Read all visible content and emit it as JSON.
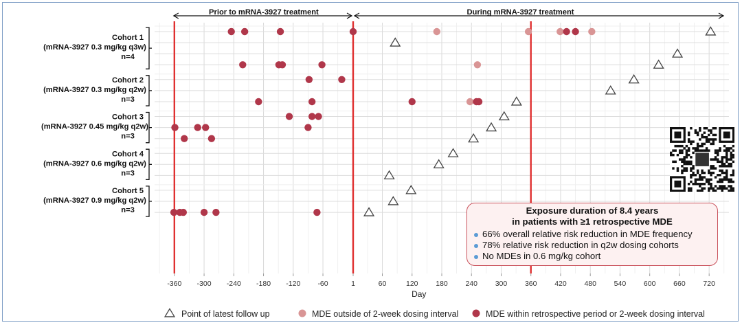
{
  "chart_data": {
    "type": "scatter",
    "xlabel": "Day",
    "xlim": [
      -400,
      760
    ],
    "xticks": [
      "-360",
      "-300",
      "-240",
      "-180",
      "-120",
      "-60",
      "1",
      "60",
      "120",
      "180",
      "240",
      "300",
      "360",
      "420",
      "480",
      "540",
      "600",
      "660",
      "720"
    ],
    "periods": [
      {
        "label": "Prior to mRNA-3927 treatment"
      },
      {
        "label": "During mRNA-3927 treatment"
      }
    ],
    "reference_lines_x": [
      -360,
      1,
      360
    ],
    "colors": {
      "mde_outside": "#d99595",
      "mde_within": "#b0374a",
      "ref_line": "#e03030",
      "follow_up": "#444444"
    },
    "groups": [
      {
        "title": "Cohort 1",
        "regimen": "(mRNA-3927 0.3 mg/kg q3w)",
        "n": "n=4",
        "patients": [
          {
            "within": [
              -245,
              -218,
              -146,
              1,
              432,
              450
            ],
            "outside": [
              170,
              355,
              419,
              483
            ],
            "follow_up": 723
          },
          {
            "within": [],
            "outside": [],
            "follow_up": 86
          },
          {
            "within": [],
            "outside": [],
            "follow_up": 656
          },
          {
            "within": [
              -222,
              -149,
              -142,
              -62
            ],
            "outside": [
              252
            ],
            "follow_up": 618
          }
        ]
      },
      {
        "title": "Cohort 2",
        "regimen": "(mRNA-3927 0.3 mg/kg q2w)",
        "n": "n=3",
        "patients": [
          {
            "within": [
              -88,
              -22
            ],
            "outside": [],
            "follow_up": 568
          },
          {
            "within": [],
            "outside": [],
            "follow_up": 521
          },
          {
            "within": [
              -190,
              -82,
              120,
              250,
              255
            ],
            "outside": [
              237
            ],
            "follow_up": 331
          }
        ]
      },
      {
        "title": "Cohort 3",
        "regimen": "(mRNA-3927 0.45 mg/kg q2w)",
        "n": "n=3",
        "patients": [
          {
            "within": [
              -128,
              -82,
              -69
            ],
            "outside": [],
            "follow_up": 306
          },
          {
            "within": [
              -359,
              -313,
              -297,
              -90
            ],
            "outside": [],
            "follow_up": 280
          },
          {
            "within": [
              -340,
              -285
            ],
            "outside": [],
            "follow_up": 244
          }
        ]
      },
      {
        "title": "Cohort 4",
        "regimen": "(mRNA-3927 0.6 mg/kg q2w)",
        "n": "n=3",
        "patients": [
          {
            "within": [],
            "outside": [],
            "follow_up": 203
          },
          {
            "within": [],
            "outside": [],
            "follow_up": 174
          },
          {
            "within": [],
            "outside": [],
            "follow_up": 74
          }
        ]
      },
      {
        "title": "Cohort 5",
        "regimen": "(mRNA-3927 0.9 mg/kg q2w)",
        "n": "n=3",
        "patients": [
          {
            "within": [],
            "outside": [],
            "follow_up": 118
          },
          {
            "within": [],
            "outside": [],
            "follow_up": 82
          },
          {
            "within": [
              -361,
              -349,
              -342,
              -300,
              -276,
              -72
            ],
            "outside": [],
            "follow_up": 33
          }
        ]
      }
    ],
    "legend": {
      "follow_up": "Point of latest follow up",
      "outside": "MDE outside of 2-week dosing interval",
      "within": "MDE within retrospective period or 2-week dosing interval"
    }
  },
  "callout": {
    "title_line1": "Exposure duration of 8.4 years",
    "title_line2": "in patients with ≥1 retrospective MDE",
    "bullets": [
      "66% overall relative risk reduction in MDE frequency",
      "78% relative risk reduction in q2w dosing cohorts",
      "No MDEs in 0.6 mg/kg cohort"
    ]
  },
  "qr": {
    "icon": "qr-code-icon"
  }
}
